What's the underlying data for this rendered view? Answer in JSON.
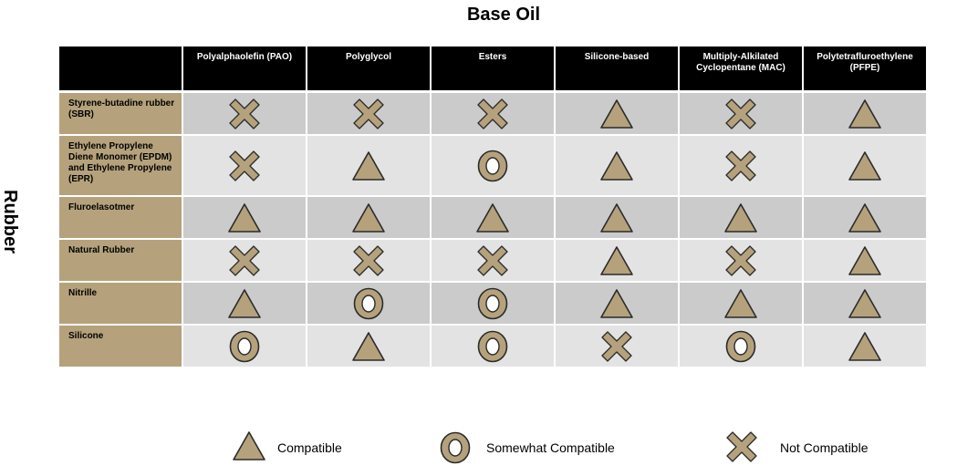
{
  "title": "Base Oil",
  "side_label": "Rubber",
  "columns": [
    "Polyalphaolefin (PAO)",
    "Polyglycol",
    "Esters",
    "Silicone-based",
    "Multiply-Alkilated Cyclopentane (MAC)",
    "Polytetrafluroethylene (PFPE)"
  ],
  "rows": [
    {
      "label": "Styrene-butadine rubber (SBR)",
      "values": [
        "x",
        "x",
        "x",
        "triangle",
        "x",
        "triangle"
      ]
    },
    {
      "label": "Ethylene Propylene Diene Monomer (EPDM) and Ethylene Propylene (EPR)",
      "values": [
        "x",
        "triangle",
        "circle",
        "triangle",
        "x",
        "triangle"
      ]
    },
    {
      "label": "Fluroelasotmer",
      "values": [
        "triangle",
        "triangle",
        "triangle",
        "triangle",
        "triangle",
        "triangle"
      ]
    },
    {
      "label": "Natural Rubber",
      "values": [
        "x",
        "x",
        "x",
        "triangle",
        "x",
        "triangle"
      ]
    },
    {
      "label": "Nitrille",
      "values": [
        "triangle",
        "circle",
        "circle",
        "triangle",
        "triangle",
        "triangle"
      ]
    },
    {
      "label": "Silicone",
      "values": [
        "circle",
        "triangle",
        "circle",
        "x",
        "circle",
        "triangle"
      ]
    }
  ],
  "legend": [
    {
      "symbol": "triangle",
      "label": "Compatible"
    },
    {
      "symbol": "circle",
      "label": "Somewhat Compatible"
    },
    {
      "symbol": "x",
      "label": "Not Compatible"
    }
  ],
  "colors": {
    "header_bg": "#000000",
    "row_header_bg": "#b5a27c",
    "row_odd_bg": "#cbcbcb",
    "row_even_bg": "#e3e3e3",
    "symbol_fill": "#b5a27c",
    "symbol_stroke": "#2b2b2b"
  }
}
